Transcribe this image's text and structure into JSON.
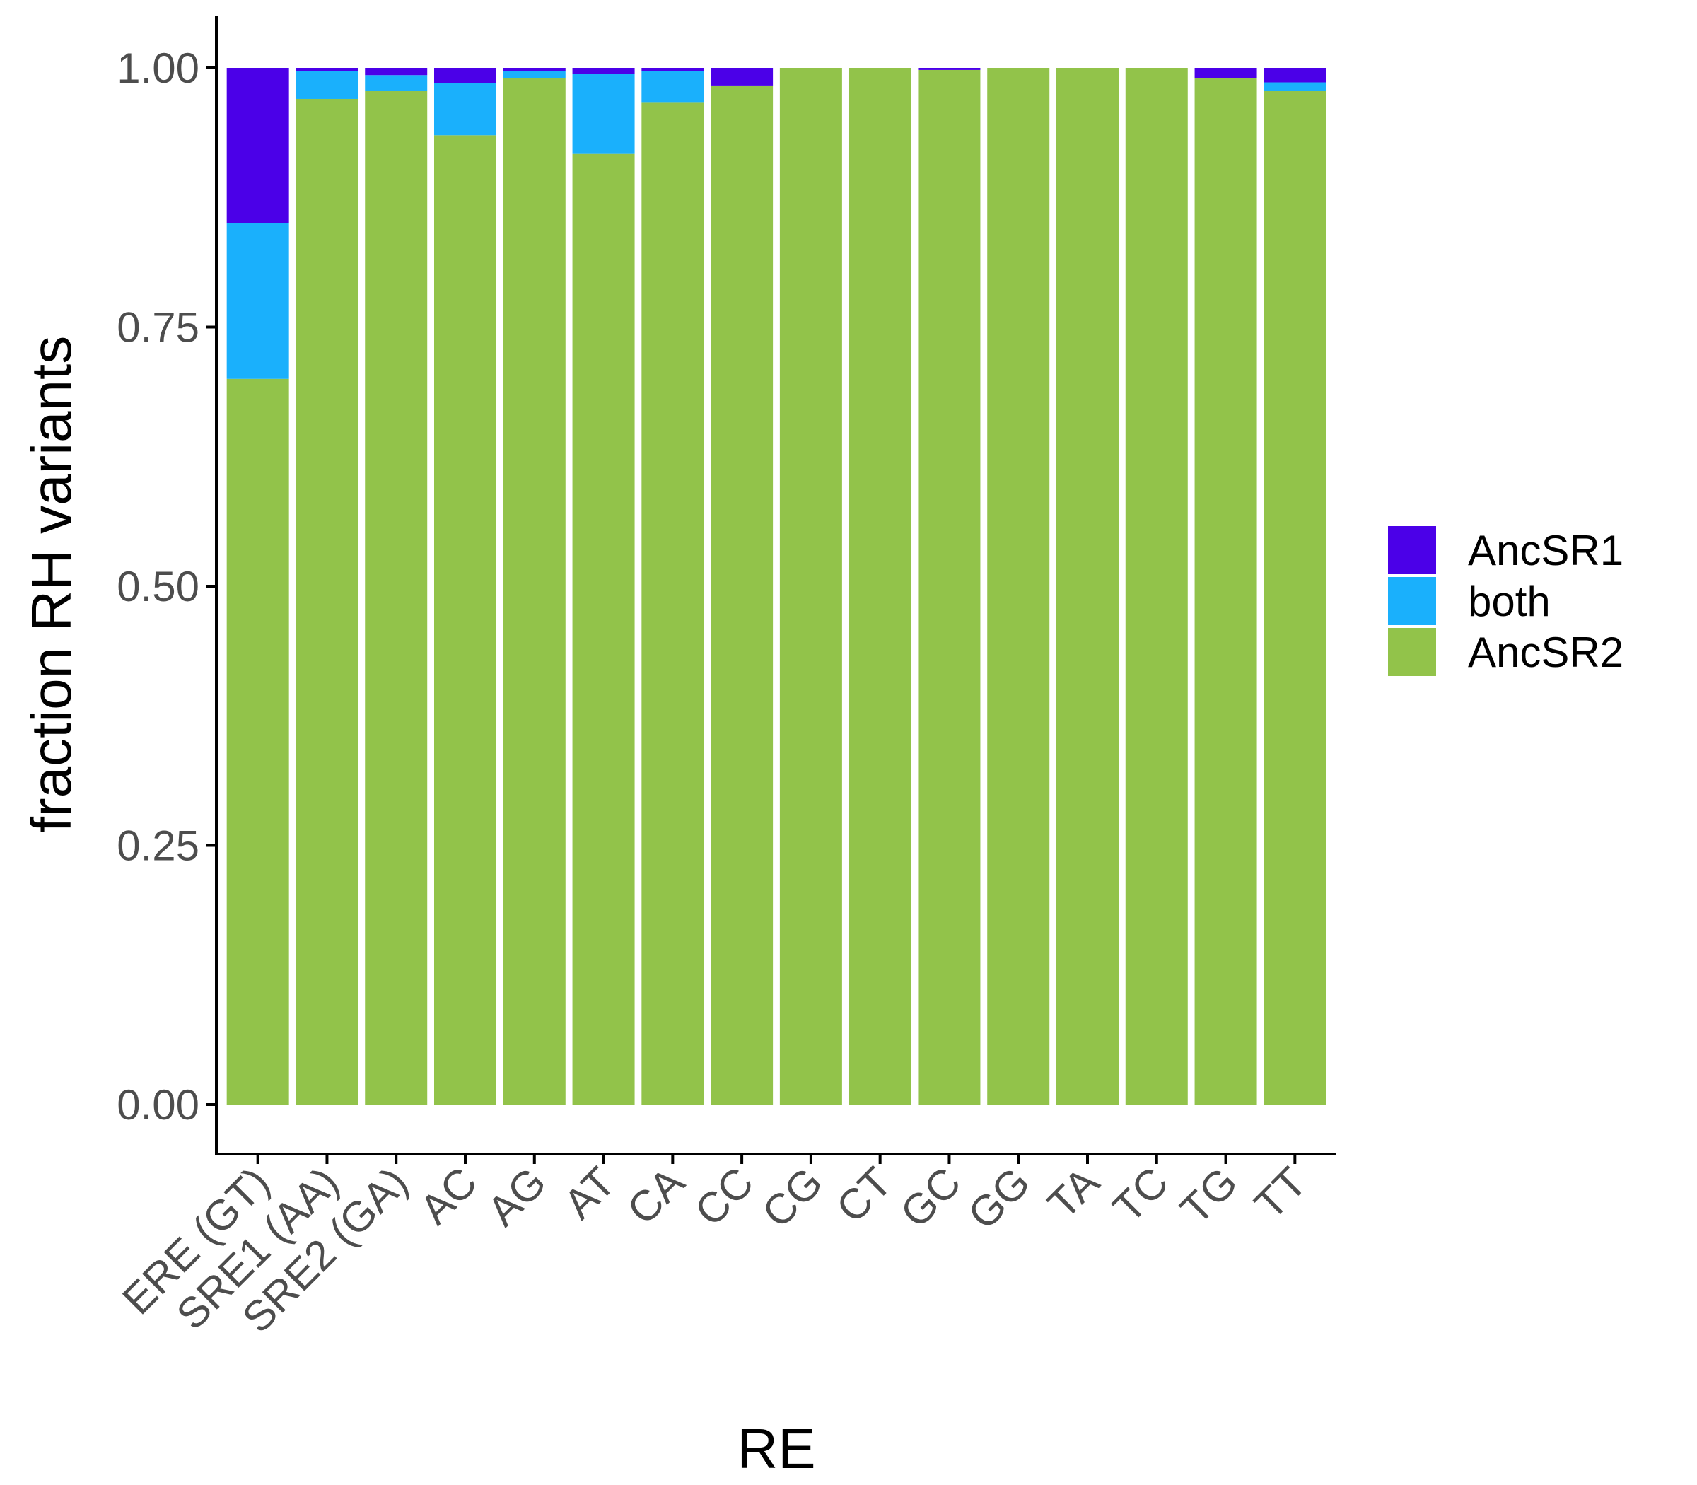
{
  "chart_data": {
    "type": "bar",
    "stacked": true,
    "title": "",
    "xlabel": "RE",
    "ylabel": "fraction RH variants",
    "ylim": [
      0,
      1
    ],
    "yticks": [
      "0.00",
      "0.25",
      "0.50",
      "0.75",
      "1.00"
    ],
    "categories": [
      "ERE (GT)",
      "SRE1 (AA)",
      "SRE2 (GA)",
      "AC",
      "AG",
      "AT",
      "CA",
      "CC",
      "CG",
      "CT",
      "GC",
      "GG",
      "TA",
      "TC",
      "TG",
      "TT"
    ],
    "series": [
      {
        "name": "AncSR2",
        "color": "#92c34a",
        "values": [
          0.7,
          0.97,
          0.978,
          0.935,
          0.99,
          0.917,
          0.967,
          0.983,
          1.0,
          1.0,
          0.998,
          1.0,
          1.0,
          1.0,
          0.99,
          0.978
        ]
      },
      {
        "name": "both",
        "color": "#1ab0fc",
        "values": [
          0.15,
          0.027,
          0.015,
          0.05,
          0.007,
          0.077,
          0.03,
          0.0,
          0.0,
          0.0,
          0.0,
          0.0,
          0.0,
          0.0,
          0.0,
          0.008
        ]
      },
      {
        "name": "AncSR1",
        "color": "#4b00e8",
        "values": [
          0.15,
          0.003,
          0.007,
          0.015,
          0.003,
          0.006,
          0.003,
          0.017,
          0.0,
          0.0,
          0.002,
          0.0,
          0.0,
          0.0,
          0.01,
          0.014
        ]
      }
    ],
    "legend": {
      "placement": "right",
      "order": [
        "AncSR1",
        "both",
        "AncSR2"
      ]
    },
    "grid": false
  }
}
